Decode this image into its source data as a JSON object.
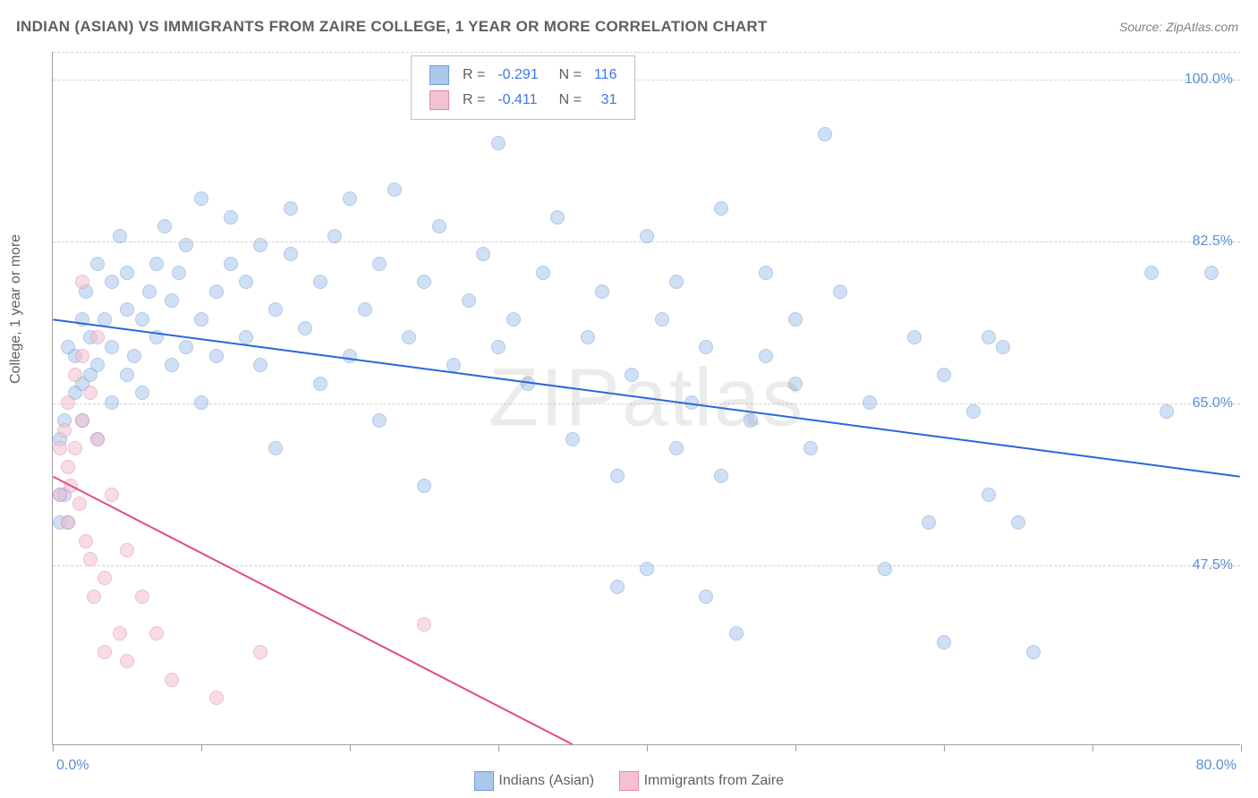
{
  "title": "INDIAN (ASIAN) VS IMMIGRANTS FROM ZAIRE COLLEGE, 1 YEAR OR MORE CORRELATION CHART",
  "source": "Source: ZipAtlas.com",
  "watermark": "ZIPatlas",
  "y_axis_title": "College, 1 year or more",
  "chart": {
    "type": "scatter",
    "xlim": [
      0,
      80
    ],
    "ylim": [
      28,
      103
    ],
    "xticks": [
      0,
      10,
      20,
      30,
      40,
      50,
      60,
      70,
      80
    ],
    "xticks_labeled": [
      {
        "v": 0,
        "label": "0.0%"
      },
      {
        "v": 80,
        "label": "80.0%"
      }
    ],
    "yticks": [
      {
        "v": 47.5,
        "label": "47.5%"
      },
      {
        "v": 65.0,
        "label": "65.0%"
      },
      {
        "v": 82.5,
        "label": "82.5%"
      },
      {
        "v": 100.0,
        "label": "100.0%"
      }
    ],
    "grid_color": "#d0d0d0",
    "background_color": "#ffffff",
    "axis_color": "#a0a0a0",
    "marker_radius": 8,
    "marker_opacity": 0.55,
    "series": [
      {
        "name": "Indians (Asian)",
        "color_fill": "#aac8ec",
        "color_stroke": "#6f9ed8",
        "R": -0.291,
        "N": 116,
        "trend": {
          "x0": 0,
          "y0": 74,
          "x1": 80,
          "y1": 57,
          "color": "#2b66d9",
          "width": 2
        },
        "points": [
          [
            0.5,
            52
          ],
          [
            0.5,
            55
          ],
          [
            0.5,
            61
          ],
          [
            0.8,
            63
          ],
          [
            0.8,
            55
          ],
          [
            1,
            52
          ],
          [
            1,
            71
          ],
          [
            1.5,
            66
          ],
          [
            1.5,
            70
          ],
          [
            2,
            63
          ],
          [
            2,
            74
          ],
          [
            2,
            67
          ],
          [
            2.2,
            77
          ],
          [
            2.5,
            68
          ],
          [
            2.5,
            72
          ],
          [
            3,
            80
          ],
          [
            3,
            69
          ],
          [
            3,
            61
          ],
          [
            3.5,
            74
          ],
          [
            4,
            65
          ],
          [
            4,
            78
          ],
          [
            4,
            71
          ],
          [
            4.5,
            83
          ],
          [
            5,
            68
          ],
          [
            5,
            75
          ],
          [
            5,
            79
          ],
          [
            5.5,
            70
          ],
          [
            6,
            74
          ],
          [
            6,
            66
          ],
          [
            6.5,
            77
          ],
          [
            7,
            80
          ],
          [
            7,
            72
          ],
          [
            7.5,
            84
          ],
          [
            8,
            69
          ],
          [
            8,
            76
          ],
          [
            8.5,
            79
          ],
          [
            9,
            71
          ],
          [
            9,
            82
          ],
          [
            10,
            74
          ],
          [
            10,
            87
          ],
          [
            10,
            65
          ],
          [
            11,
            77
          ],
          [
            11,
            70
          ],
          [
            12,
            80
          ],
          [
            12,
            85
          ],
          [
            13,
            72
          ],
          [
            13,
            78
          ],
          [
            14,
            69
          ],
          [
            14,
            82
          ],
          [
            15,
            75
          ],
          [
            15,
            60
          ],
          [
            16,
            81
          ],
          [
            16,
            86
          ],
          [
            17,
            73
          ],
          [
            18,
            78
          ],
          [
            18,
            67
          ],
          [
            19,
            83
          ],
          [
            20,
            70
          ],
          [
            20,
            87
          ],
          [
            21,
            75
          ],
          [
            22,
            80
          ],
          [
            22,
            63
          ],
          [
            23,
            88
          ],
          [
            24,
            72
          ],
          [
            25,
            78
          ],
          [
            25,
            56
          ],
          [
            26,
            84
          ],
          [
            27,
            69
          ],
          [
            28,
            76
          ],
          [
            29,
            81
          ],
          [
            30,
            71
          ],
          [
            30,
            93
          ],
          [
            31,
            74
          ],
          [
            32,
            67
          ],
          [
            33,
            79
          ],
          [
            34,
            85
          ],
          [
            35,
            61
          ],
          [
            36,
            72
          ],
          [
            37,
            77
          ],
          [
            38,
            45
          ],
          [
            38,
            57
          ],
          [
            39,
            68
          ],
          [
            40,
            83
          ],
          [
            40,
            47
          ],
          [
            41,
            74
          ],
          [
            42,
            60
          ],
          [
            42,
            78
          ],
          [
            43,
            65
          ],
          [
            44,
            71
          ],
          [
            44,
            44
          ],
          [
            45,
            57
          ],
          [
            45,
            86
          ],
          [
            46,
            40
          ],
          [
            47,
            63
          ],
          [
            48,
            79
          ],
          [
            48,
            70
          ],
          [
            50,
            67
          ],
          [
            50,
            74
          ],
          [
            51,
            60
          ],
          [
            52,
            94
          ],
          [
            53,
            77
          ],
          [
            55,
            65
          ],
          [
            56,
            47
          ],
          [
            58,
            72
          ],
          [
            59,
            52
          ],
          [
            60,
            68
          ],
          [
            60,
            39
          ],
          [
            62,
            64
          ],
          [
            63,
            55
          ],
          [
            63,
            72
          ],
          [
            64,
            71
          ],
          [
            65,
            52
          ],
          [
            66,
            38
          ],
          [
            74,
            79
          ],
          [
            75,
            64
          ],
          [
            78,
            79
          ]
        ]
      },
      {
        "name": "Immigrants from Zaire",
        "color_fill": "#f4c1d0",
        "color_stroke": "#e08ca7",
        "R": -0.411,
        "N": 31,
        "trend": {
          "x0": 0,
          "y0": 57,
          "x1": 35,
          "y1": 28,
          "color": "#e14b7c",
          "width": 2
        },
        "points": [
          [
            0.5,
            60
          ],
          [
            0.5,
            55
          ],
          [
            0.8,
            62
          ],
          [
            1,
            58
          ],
          [
            1,
            52
          ],
          [
            1,
            65
          ],
          [
            1.2,
            56
          ],
          [
            1.5,
            60
          ],
          [
            1.5,
            68
          ],
          [
            1.8,
            54
          ],
          [
            2,
            78
          ],
          [
            2,
            63
          ],
          [
            2,
            70
          ],
          [
            2.2,
            50
          ],
          [
            2.5,
            48
          ],
          [
            2.5,
            66
          ],
          [
            2.8,
            44
          ],
          [
            3,
            61
          ],
          [
            3,
            72
          ],
          [
            3.5,
            46
          ],
          [
            3.5,
            38
          ],
          [
            4,
            55
          ],
          [
            4.5,
            40
          ],
          [
            5,
            37
          ],
          [
            5,
            49
          ],
          [
            6,
            44
          ],
          [
            7,
            40
          ],
          [
            8,
            35
          ],
          [
            11,
            33
          ],
          [
            14,
            38
          ],
          [
            25,
            41
          ]
        ]
      }
    ]
  },
  "legend_top": {
    "rows": [
      {
        "swatch_fill": "#aac8ec",
        "swatch_stroke": "#6f9ed8",
        "r_label": "R =",
        "r_value": "-0.291",
        "n_label": "N =",
        "n_value": "116"
      },
      {
        "swatch_fill": "#f4c1d0",
        "swatch_stroke": "#e08ca7",
        "r_label": "R =",
        "r_value": "-0.411",
        "n_label": "N =",
        "n_value": "31"
      }
    ]
  },
  "legend_bottom": {
    "items": [
      {
        "swatch_fill": "#aac8ec",
        "swatch_stroke": "#6f9ed8",
        "label": "Indians (Asian)"
      },
      {
        "swatch_fill": "#f4c1d0",
        "swatch_stroke": "#e08ca7",
        "label": "Immigrants from Zaire"
      }
    ]
  },
  "colors": {
    "title_text": "#606060",
    "tick_text": "#5b8fd6",
    "link_blue": "#3b78e7"
  }
}
